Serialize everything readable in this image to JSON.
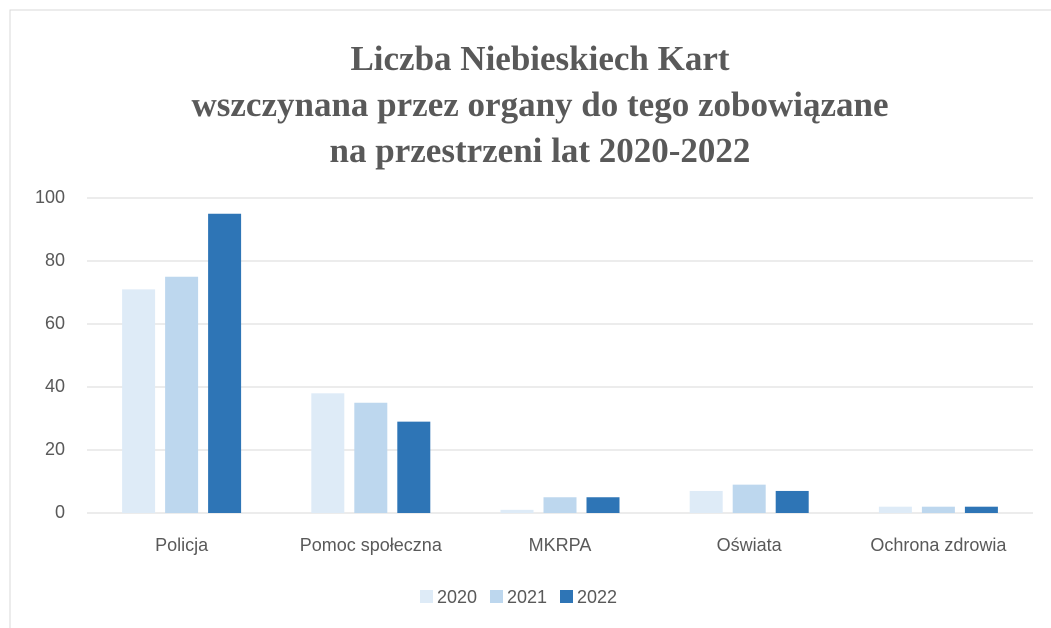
{
  "chart_data": {
    "type": "bar",
    "title": [
      "Liczba Niebieskiech Kart",
      "wszczynana przez organy do tego zobowiązane",
      "na przestrzeni lat 2020-2022"
    ],
    "categories": [
      "Policja",
      "Pomoc społeczna",
      "MKRPA",
      "Oświata",
      "Ochrona zdrowia"
    ],
    "series": [
      {
        "name": "2020",
        "color": "#deebf7",
        "values": [
          71,
          38,
          1,
          7,
          2
        ]
      },
      {
        "name": "2021",
        "color": "#bdd7ee",
        "values": [
          75,
          35,
          5,
          9,
          2
        ]
      },
      {
        "name": "2022",
        "color": "#2e75b6",
        "values": [
          95,
          29,
          5,
          7,
          2
        ]
      }
    ],
    "ylim": [
      0,
      100
    ],
    "yticks": [
      0,
      20,
      40,
      60,
      80,
      100
    ],
    "grid": true,
    "legend": "bottom"
  }
}
